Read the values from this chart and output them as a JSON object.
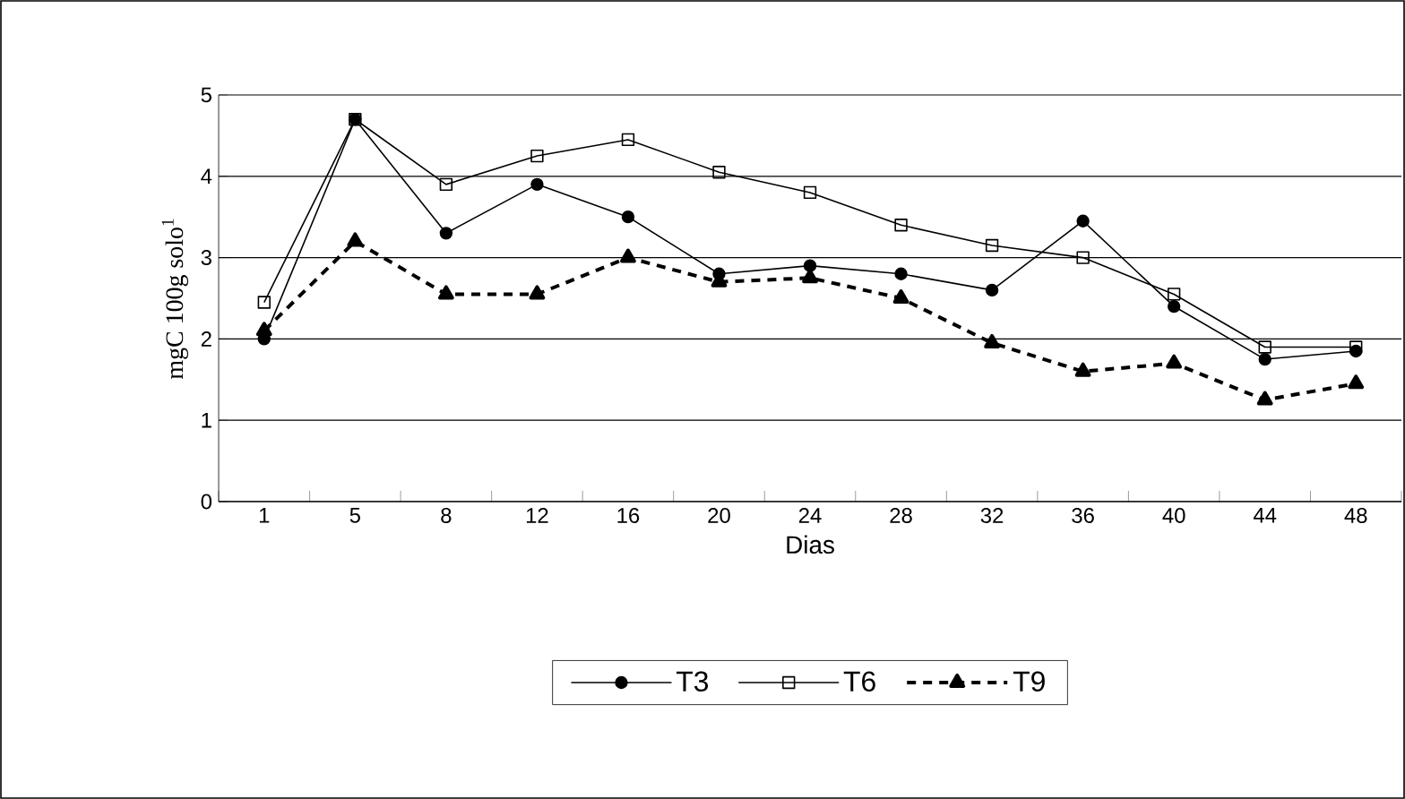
{
  "chart_data": {
    "type": "line",
    "xlabel": "Dias",
    "ylabel": "mgC 100g solo$^{1}$",
    "categories": [
      "1",
      "5",
      "8",
      "12",
      "16",
      "20",
      "24",
      "28",
      "32",
      "36",
      "40",
      "44",
      "48"
    ],
    "ylim": [
      0,
      5
    ],
    "yticks": [
      0,
      1,
      2,
      3,
      4,
      5
    ],
    "grid": "y",
    "legend": "bottom",
    "series": [
      {
        "name": "T3",
        "color": "#000000",
        "marker": "circle",
        "line_style": "solid",
        "values": [
          2.0,
          4.7,
          3.3,
          3.9,
          3.5,
          2.8,
          2.9,
          2.8,
          2.6,
          3.45,
          2.4,
          1.75,
          1.85
        ]
      },
      {
        "name": "T6",
        "color": "#000000",
        "marker": "square",
        "line_style": "solid",
        "values": [
          2.45,
          4.7,
          3.9,
          4.25,
          4.45,
          4.05,
          3.8,
          3.4,
          3.15,
          3.0,
          2.55,
          1.9,
          1.9
        ]
      },
      {
        "name": "T9",
        "color": "#000000",
        "marker": "triangle",
        "line_style": "dashed",
        "values": [
          2.1,
          3.2,
          2.55,
          2.55,
          3.0,
          2.7,
          2.75,
          2.5,
          1.95,
          1.6,
          1.7,
          1.25,
          1.45
        ]
      }
    ]
  }
}
